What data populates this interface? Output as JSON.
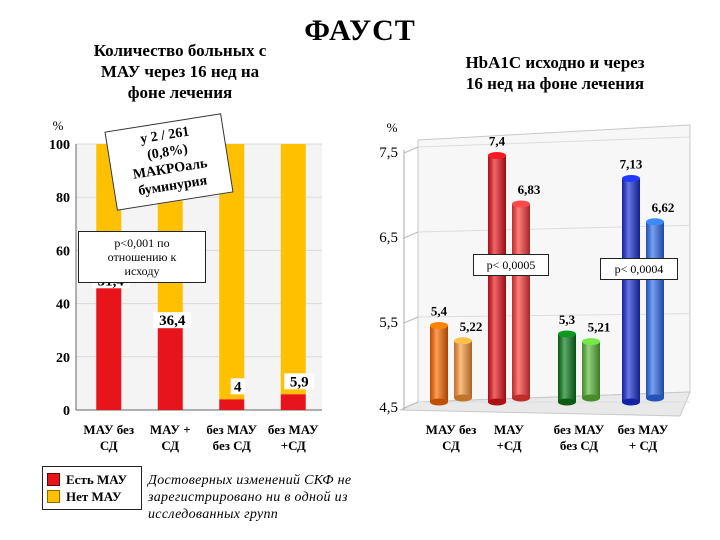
{
  "title": "ФАУСТ",
  "colors": {
    "red": "#e8141b",
    "yellow": "#ffc000",
    "green": "#0a7a1a",
    "blue": "#1a2fd6",
    "orange": "#ff6a00"
  },
  "left_note_annotation": [
    "у 2 / 261",
    "(0,8%)",
    "МАКРОаль",
    "буминурия"
  ],
  "left_p_note": [
    "р<0,001 по",
    "отношению к",
    "исходу"
  ],
  "right_p_notes": [
    "р< 0,0005",
    "р< 0,0004"
  ],
  "legend": {
    "items": [
      {
        "label": "Есть МАУ"
      },
      {
        "label": "Нет МАУ"
      }
    ]
  },
  "footnote": [
    "Достоверных изменений СКФ не",
    "зарегистрировано ни в одной из",
    "исследованных групп"
  ],
  "chart_data": [
    {
      "type": "bar",
      "title": "Количество больных с МАУ через 16 нед на фоне лечения",
      "title_lines": [
        "Количество больных с",
        "МАУ через 16 нед на",
        "фоне лечения"
      ],
      "ylabel": "%",
      "ylim": [
        0,
        100
      ],
      "yticks": [
        "0",
        "20",
        "40",
        "60",
        "80",
        "100"
      ],
      "categories": [
        [
          "МАУ без",
          "СД"
        ],
        [
          "МАУ +",
          "СД"
        ],
        [
          "без МАУ",
          "без СД"
        ],
        [
          "без МАУ",
          "+СД"
        ]
      ],
      "stacked": true,
      "series": [
        {
          "name": "Есть МАУ",
          "values": [
            51.4,
            36.4,
            4,
            5.9
          ],
          "labels": [
            "51,4",
            "36,4",
            "4",
            "5,9"
          ]
        },
        {
          "name": "Нет МАУ",
          "values": [
            48.6,
            63.6,
            96,
            94.1
          ]
        }
      ]
    },
    {
      "type": "bar",
      "title": "HbA1C исходно и через 16 нед на фоне лечения",
      "title_lines": [
        "HbA1C исходно и через",
        "16 нед на фоне лечения"
      ],
      "ylabel": "%",
      "ylim": [
        4.5,
        7.5
      ],
      "yticks": [
        "4,5",
        "5,5",
        "6,5",
        "7,5"
      ],
      "categories": [
        [
          "МАУ без",
          "СД"
        ],
        [
          "МАУ",
          "+СД"
        ],
        [
          "без МАУ",
          "без СД"
        ],
        [
          "без МАУ",
          "+ СД"
        ]
      ],
      "values": [
        [
          5.4,
          5.22
        ],
        [
          7.4,
          6.83
        ],
        [
          5.3,
          5.21
        ],
        [
          7.13,
          6.62
        ]
      ],
      "labels": [
        [
          "5,4",
          "5,22"
        ],
        [
          "7,4",
          "6,83"
        ],
        [
          "5,3",
          "5,21"
        ],
        [
          "7,13",
          "6,62"
        ]
      ]
    }
  ]
}
